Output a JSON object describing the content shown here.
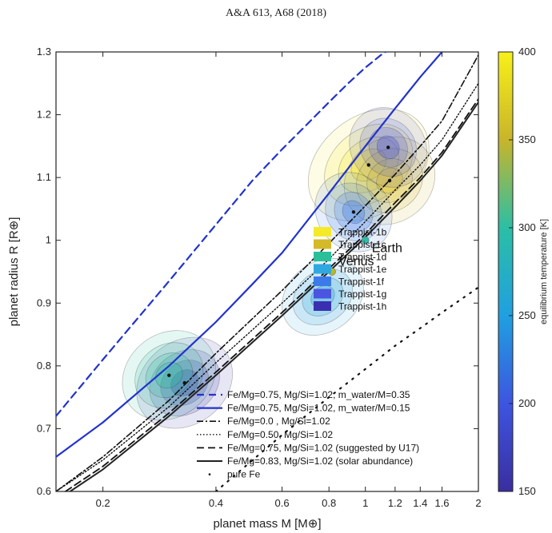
{
  "header": {
    "citation": "A&A 613, A68 (2018)"
  },
  "chart_data": {
    "type": "scatter",
    "xlabel": "planet mass M [M⊕]",
    "ylabel": "planet radius R [R⊕]",
    "xscale": "log",
    "xlim": [
      0.15,
      2.0
    ],
    "ylim": [
      0.6,
      1.3
    ],
    "xticks": [
      "0.2",
      "0.4",
      "0.6",
      "0.8",
      "1",
      "1.2",
      "1.4",
      "1.6",
      "2"
    ],
    "xtick_values": [
      0.2,
      0.4,
      0.6,
      0.8,
      1.0,
      1.2,
      1.4,
      1.6,
      2.0
    ],
    "yticks": [
      "0.6",
      "0.7",
      "0.8",
      "0.9",
      "1",
      "1.1",
      "1.2",
      "1.3"
    ],
    "ytick_values": [
      0.6,
      0.7,
      0.8,
      0.9,
      1.0,
      1.1,
      1.2,
      1.3
    ],
    "colorbar": {
      "label": "equilibrium temperature [K]",
      "range": [
        150,
        400
      ],
      "ticks": [
        "150",
        "200",
        "250",
        "300",
        "350",
        "400"
      ],
      "tick_values": [
        150,
        200,
        250,
        300,
        350,
        400
      ]
    },
    "planets": [
      {
        "name": "Trappist-1b",
        "mass": 1.02,
        "radius": 1.12,
        "color": "#f5ea2a",
        "sigma_mass": 0.16,
        "sigma_radius": 0.035
      },
      {
        "name": "Trappist-1c",
        "mass": 1.16,
        "radius": 1.095,
        "color": "#d4b928",
        "sigma_mass": 0.13,
        "sigma_radius": 0.03
      },
      {
        "name": "Trappist-1d",
        "mass": 0.3,
        "radius": 0.785,
        "color": "#2bbf9a",
        "sigma_mass": 0.035,
        "sigma_radius": 0.03
      },
      {
        "name": "Trappist-1e",
        "mass": 0.77,
        "radius": 0.91,
        "color": "#2fa8e0",
        "sigma_mass": 0.08,
        "sigma_radius": 0.025
      },
      {
        "name": "Trappist-1f",
        "mass": 0.93,
        "radius": 1.045,
        "color": "#3b7ae8",
        "sigma_mass": 0.08,
        "sigma_radius": 0.03
      },
      {
        "name": "Trappist-1g",
        "mass": 1.15,
        "radius": 1.148,
        "color": "#4a55e0",
        "sigma_mass": 0.1,
        "sigma_radius": 0.03
      },
      {
        "name": "Trappist-1h",
        "mass": 0.33,
        "radius": 0.773,
        "color": "#3a2fb0",
        "sigma_mass": 0.04,
        "sigma_radius": 0.03
      }
    ],
    "reference_planets": [
      {
        "name": "Earth",
        "mass": 1.0,
        "radius": 1.0,
        "color": "#2bbfa8"
      },
      {
        "name": "Venus",
        "mass": 0.815,
        "radius": 0.95,
        "color": "#b8b82a"
      }
    ],
    "models": [
      {
        "name": "Fe/Mg=0.75, Mg/Si=1.02, m_water/M=0.35",
        "style": "dash-blue",
        "x": [
          0.15,
          0.2,
          0.3,
          0.4,
          0.5,
          0.6,
          0.7,
          0.8,
          0.9,
          1.0,
          1.1,
          1.2
        ],
        "y": [
          0.72,
          0.81,
          0.935,
          1.025,
          1.095,
          1.145,
          1.185,
          1.22,
          1.25,
          1.275,
          1.295,
          1.31
        ]
      },
      {
        "name": "Fe/Mg=0.75, Mg/Si=1.02, m_water/M=0.15",
        "style": "solid-blue",
        "x": [
          0.15,
          0.2,
          0.3,
          0.4,
          0.5,
          0.6,
          0.8,
          1.0,
          1.2,
          1.4,
          1.6
        ],
        "y": [
          0.655,
          0.71,
          0.8,
          0.87,
          0.93,
          0.98,
          1.075,
          1.15,
          1.21,
          1.26,
          1.3
        ]
      },
      {
        "name": "Fe/Mg=0.0 , Mg/Si=1.02",
        "style": "dashdot-black",
        "x": [
          0.15,
          0.2,
          0.3,
          0.4,
          0.6,
          0.8,
          1.0,
          1.2,
          1.4,
          1.6,
          2.0
        ],
        "y": [
          0.6,
          0.655,
          0.745,
          0.82,
          0.92,
          0.995,
          1.055,
          1.105,
          1.15,
          1.19,
          1.295
        ]
      },
      {
        "name": "Fe/Mg=0.50, Mg/Si=1.02",
        "style": "dotted-black",
        "x": [
          0.15,
          0.2,
          0.3,
          0.4,
          0.6,
          0.8,
          1.0,
          1.2,
          1.4,
          1.6,
          2.0
        ],
        "y": [
          0.6,
          0.65,
          0.735,
          0.805,
          0.9,
          0.97,
          1.03,
          1.08,
          1.12,
          1.16,
          1.25
        ]
      },
      {
        "name": "Fe/Mg=0.75, Mg/Si=1.02 (suggested by U17)",
        "style": "dash-black",
        "x": [
          0.15,
          0.2,
          0.3,
          0.4,
          0.6,
          0.8,
          1.0,
          1.2,
          1.4,
          1.6,
          2.0
        ],
        "y": [
          0.59,
          0.64,
          0.725,
          0.79,
          0.885,
          0.955,
          1.01,
          1.06,
          1.1,
          1.14,
          1.225
        ]
      },
      {
        "name": "Fe/Mg=0.83, Mg/Si=1.02 (solar abundance)",
        "style": "solid-black",
        "x": [
          0.15,
          0.2,
          0.3,
          0.4,
          0.6,
          0.8,
          1.0,
          1.2,
          1.4,
          1.6,
          2.0
        ],
        "y": [
          0.585,
          0.635,
          0.72,
          0.785,
          0.88,
          0.95,
          1.005,
          1.053,
          1.095,
          1.135,
          1.22
        ]
      },
      {
        "name": "pure Fe",
        "style": "sparse-dots",
        "x": [
          0.4,
          0.6,
          0.8,
          1.0,
          1.2,
          1.4,
          1.6,
          2.0
        ],
        "y": [
          0.6,
          0.69,
          0.75,
          0.795,
          0.832,
          0.86,
          0.885,
          0.925
        ]
      }
    ],
    "legend_placement": "center-right (planets), bottom-right (models)"
  }
}
